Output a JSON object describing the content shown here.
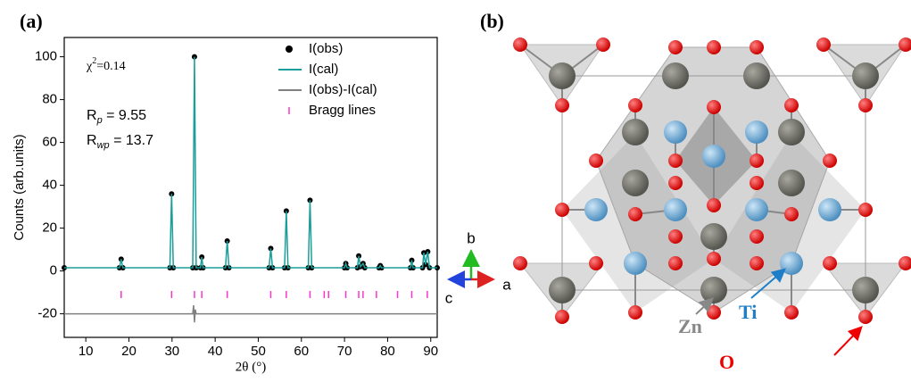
{
  "chart_data": {
    "type": "line",
    "panel_label": "(a)",
    "xlabel": "2θ (°)",
    "ylabel": "Counts (arb.units)",
    "xlim": [
      5,
      91.5
    ],
    "ylim": [
      -31,
      109
    ],
    "xticks": [
      10,
      20,
      30,
      40,
      50,
      60,
      70,
      80,
      90
    ],
    "yticks": [
      -20,
      0,
      20,
      40,
      60,
      80,
      100
    ],
    "annotations": [
      {
        "main": "χ",
        "sup": "2",
        "rest": "=0.14"
      },
      {
        "main": "R",
        "sub": "p",
        "rest": " = 9.55"
      },
      {
        "main": "R",
        "sub": "wp",
        "rest": " = 13.7"
      }
    ],
    "legend": "upper right",
    "series": [
      {
        "name": "I(obs)",
        "style": "dots",
        "color": "#000000",
        "x": [
          5,
          17.8,
          18.2,
          18.6,
          29.5,
          29.9,
          30.3,
          34.8,
          35.2,
          35.6,
          36.6,
          36.9,
          37.2,
          42.4,
          42.8,
          43.2,
          52.5,
          52.9,
          53.3,
          56.1,
          56.5,
          56.9,
          61.6,
          62.0,
          62.4,
          70.0,
          70.3,
          70.6,
          73.0,
          73.3,
          73.7,
          74.3,
          74.7,
          78.0,
          78.3,
          78.6,
          85.3,
          85.6,
          85.9,
          88.1,
          88.4,
          88.8,
          89.3,
          89.7,
          91.5
        ],
        "values": [
          1.5,
          1.5,
          5.5,
          1.5,
          1.5,
          36,
          1.5,
          1.5,
          100,
          1.5,
          1.5,
          6.5,
          1.5,
          1.5,
          14,
          1.5,
          1.5,
          10.5,
          1.5,
          1.5,
          28,
          1.5,
          1.5,
          33,
          1.5,
          1.5,
          3.5,
          1.5,
          1.5,
          7,
          2,
          3.5,
          1.5,
          1.5,
          2.5,
          1.5,
          1.5,
          5,
          1.5,
          1.5,
          8.5,
          3,
          9,
          1.5,
          1.5
        ]
      },
      {
        "name": "I(cal)",
        "style": "line",
        "color": "#1a9e9a",
        "x": [
          5,
          17.8,
          18.2,
          18.6,
          29.5,
          29.9,
          30.3,
          34.8,
          35.2,
          35.6,
          36.6,
          36.9,
          37.2,
          42.4,
          42.8,
          43.2,
          52.5,
          52.9,
          53.3,
          56.1,
          56.5,
          56.9,
          61.6,
          62.0,
          62.4,
          70.0,
          70.3,
          70.6,
          73.0,
          73.3,
          73.7,
          74.3,
          74.7,
          78.0,
          78.3,
          78.6,
          85.3,
          85.6,
          85.9,
          88.1,
          88.4,
          88.8,
          89.3,
          89.7,
          91.5
        ],
        "values": [
          1.5,
          1.5,
          5.5,
          1.5,
          1.5,
          36,
          1.5,
          1.5,
          100,
          1.5,
          1.5,
          6.5,
          1.5,
          1.5,
          14,
          1.5,
          1.5,
          10.5,
          1.5,
          1.5,
          28,
          1.5,
          1.5,
          33,
          1.5,
          1.5,
          3.5,
          1.5,
          1.5,
          7,
          2,
          3.5,
          1.5,
          1.5,
          2.5,
          1.5,
          1.5,
          5,
          1.5,
          1.5,
          8.5,
          3,
          9,
          1.5,
          1.5
        ]
      },
      {
        "name": "I(obs)-I(cal)",
        "style": "line",
        "color": "#808080",
        "x": [
          5,
          34.8,
          35.0,
          35.2,
          35.4,
          35.6,
          91.5
        ],
        "values": [
          -20,
          -20,
          -16,
          -24,
          -18,
          -20,
          -20
        ]
      },
      {
        "name": "Bragg lines",
        "style": "ticks",
        "color": "#ff33cc",
        "x": [
          18.2,
          29.9,
          35.2,
          36.9,
          42.8,
          52.9,
          56.5,
          62.0,
          65.3,
          66.3,
          70.3,
          73.3,
          74.3,
          77.4,
          82.3,
          85.6,
          89.2
        ],
        "values": [
          -11,
          -11,
          -11,
          -11,
          -11,
          -11,
          -11,
          -11,
          -11,
          -11,
          -11,
          -11,
          -11,
          -11,
          -11,
          -11,
          -11
        ]
      }
    ]
  },
  "axes_triad": {
    "a": "a",
    "b": "b",
    "c": "c"
  },
  "panel_b": {
    "label": "(b)",
    "atoms": {
      "zn": "Zn",
      "ti": "Ti",
      "o": "O"
    }
  }
}
